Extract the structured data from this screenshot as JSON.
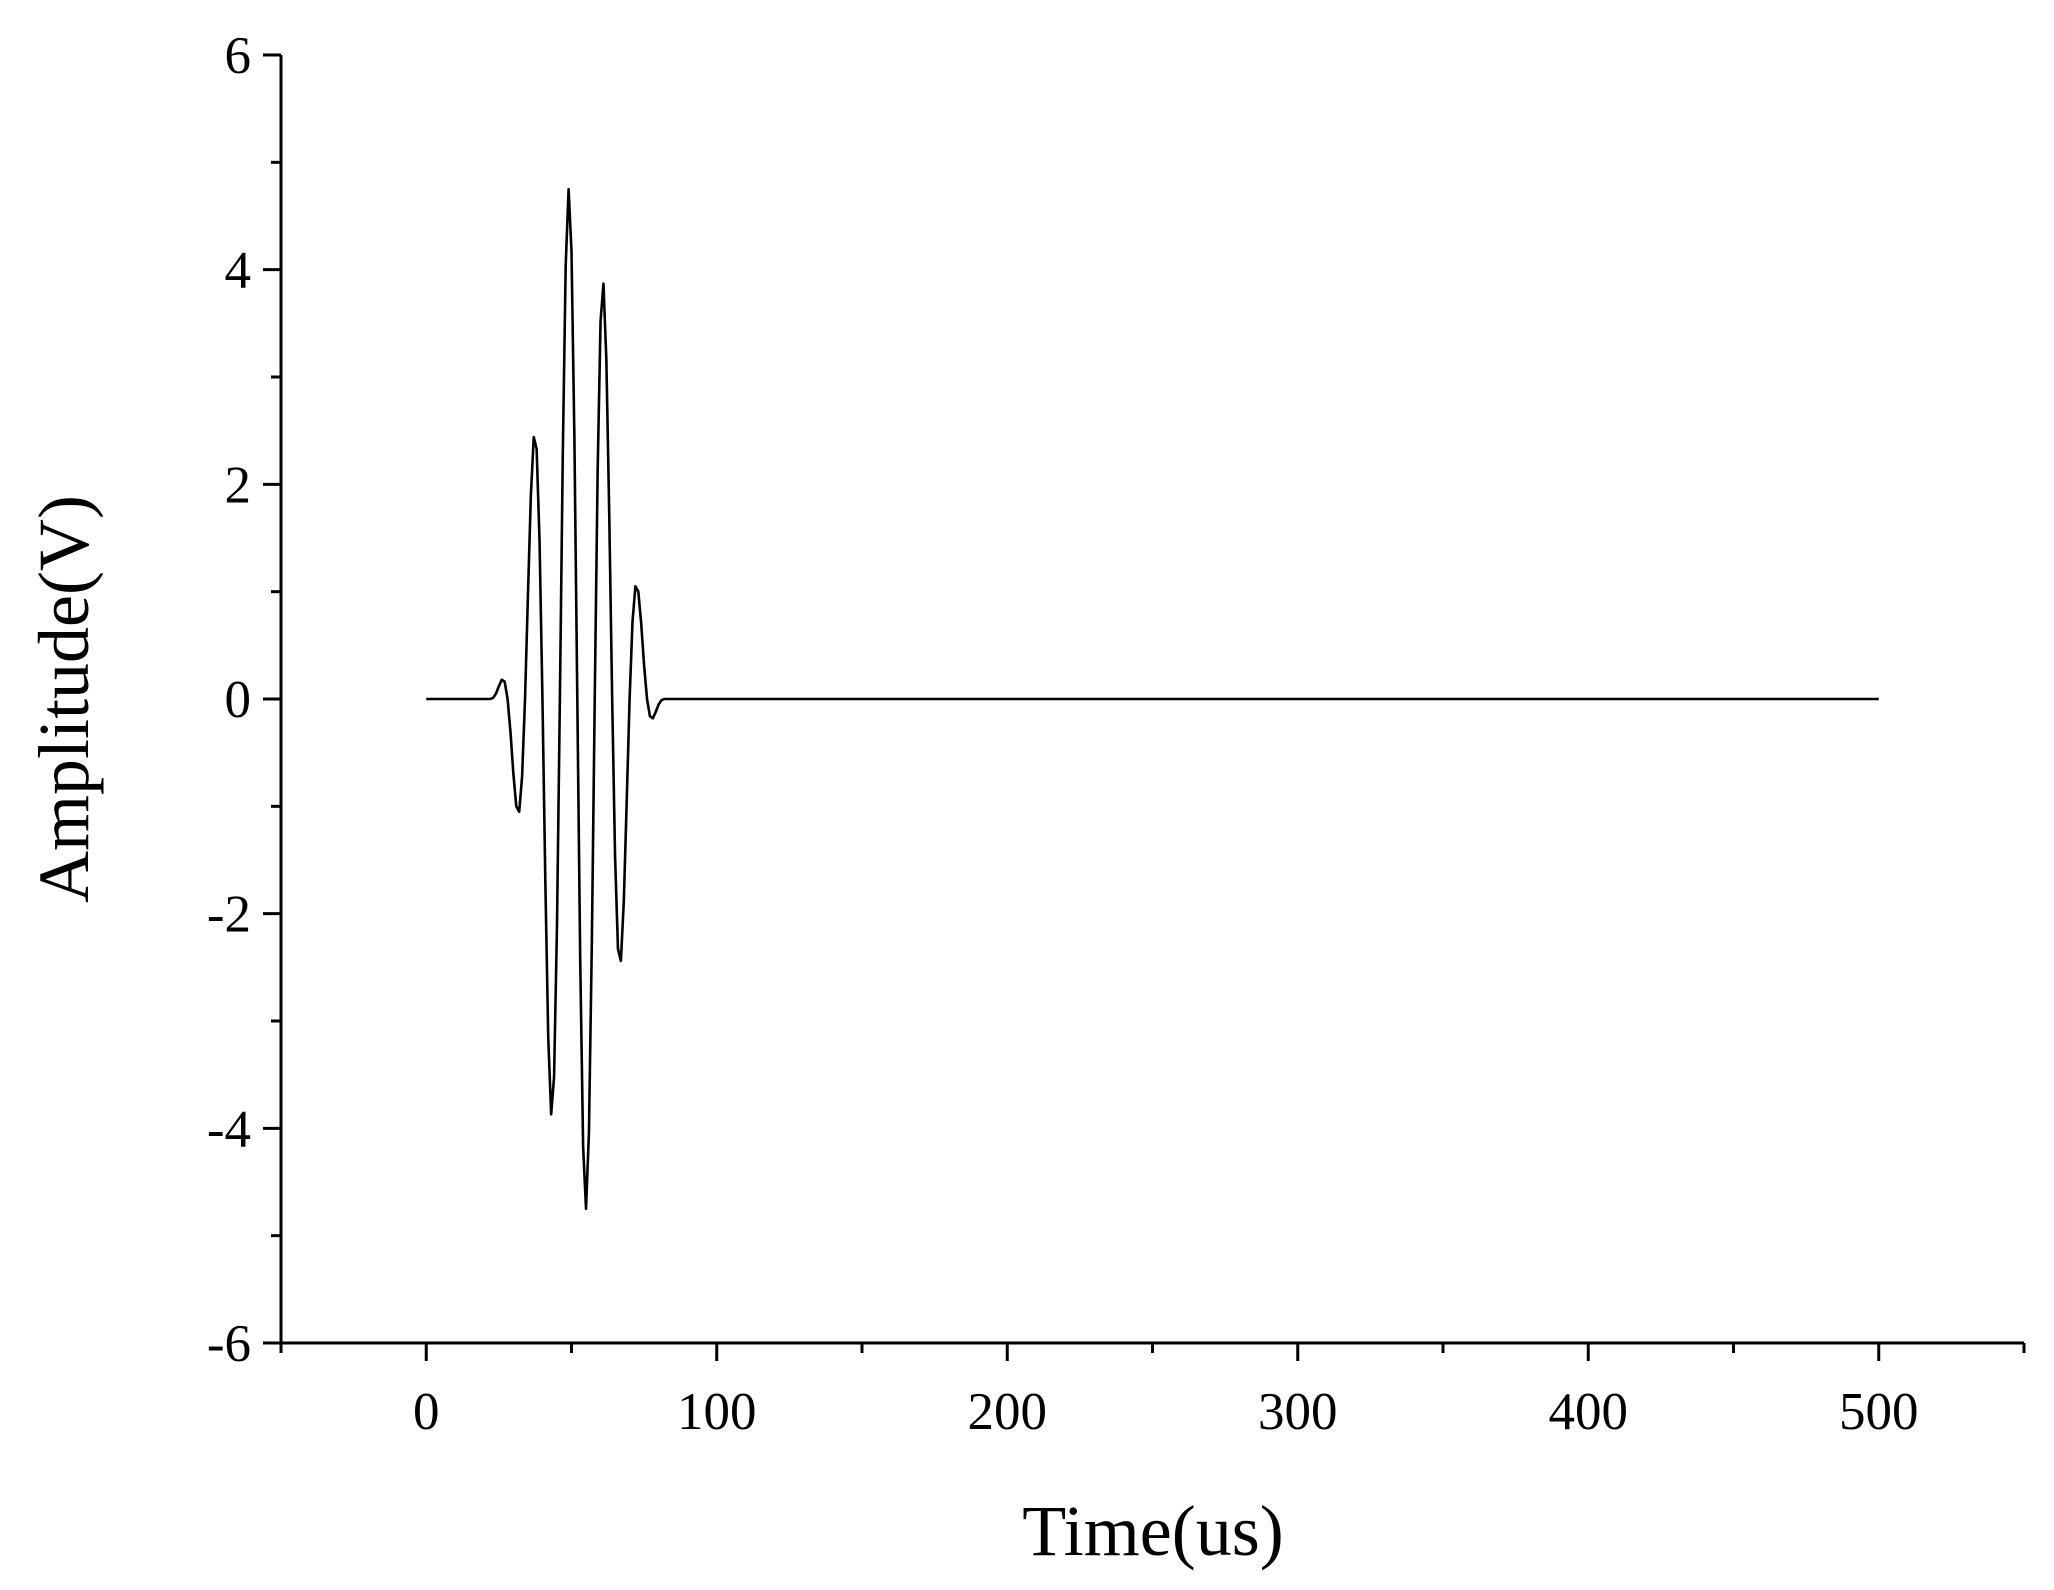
{
  "chart_data": {
    "type": "line",
    "x_label": "Time(us)",
    "y_label": "Amplitude(V)",
    "xlim": [
      -50,
      550
    ],
    "xticks": [
      0,
      100,
      200,
      300,
      400,
      500
    ],
    "ylim": [
      -6,
      6
    ],
    "yticks": [
      -6,
      -4,
      -2,
      0,
      2,
      4,
      6
    ],
    "series": [
      {
        "color": "#000000",
        "x": [
          0,
          22,
          23,
          24,
          25,
          26,
          27,
          28,
          29,
          30,
          31,
          32,
          33,
          34,
          35,
          36,
          37,
          38,
          39,
          40,
          41,
          42,
          43,
          44,
          45,
          46,
          47,
          48,
          49,
          50,
          51,
          52,
          53,
          54,
          55,
          56,
          57,
          58,
          59,
          60,
          61,
          62,
          63,
          64,
          65,
          66,
          67,
          68,
          69,
          70,
          71,
          72,
          73,
          74,
          75,
          76,
          77,
          78,
          79,
          80,
          81,
          82,
          500
        ],
        "values": [
          0,
          0,
          0.01,
          0.05,
          0.12,
          0.18,
          0.16,
          0,
          -0.31,
          -0.7,
          -1.0,
          -1.05,
          -0.72,
          0,
          0.96,
          1.89,
          2.44,
          2.33,
          1.47,
          0,
          -1.71,
          -3.16,
          -3.87,
          -3.52,
          -2.12,
          0,
          2.27,
          4.04,
          4.75,
          4.17,
          2.43,
          0,
          -2.43,
          -4.17,
          -4.75,
          -4.04,
          -2.27,
          0,
          2.12,
          3.52,
          3.87,
          3.16,
          1.71,
          0,
          -1.47,
          -2.33,
          -2.44,
          -1.89,
          -0.96,
          0,
          0.72,
          1.05,
          1.0,
          0.7,
          0.31,
          0,
          -0.16,
          -0.18,
          -0.12,
          -0.05,
          -0.01,
          0,
          0
        ]
      }
    ]
  }
}
